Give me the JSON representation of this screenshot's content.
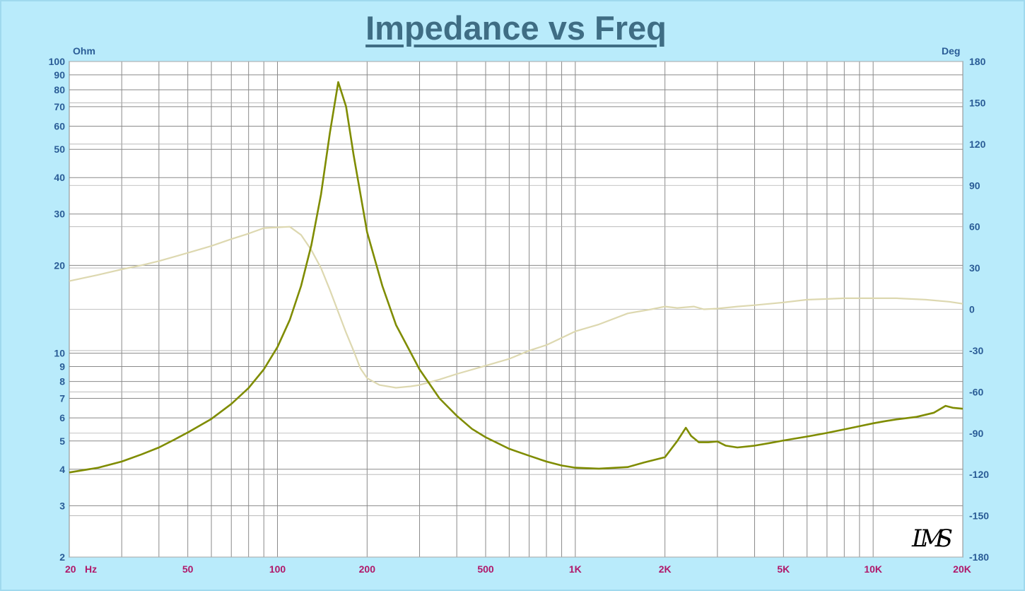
{
  "chart_data": {
    "type": "line",
    "title": "Impedance vs Freq",
    "x_scale": "log",
    "x_range": [
      20,
      20000
    ],
    "x_ticks": [
      {
        "value": 20,
        "label": "20"
      },
      {
        "value": 50,
        "label": "50"
      },
      {
        "value": 100,
        "label": "100"
      },
      {
        "value": 200,
        "label": "200"
      },
      {
        "value": 500,
        "label": "500"
      },
      {
        "value": 1000,
        "label": "1K"
      },
      {
        "value": 2000,
        "label": "2K"
      },
      {
        "value": 5000,
        "label": "5K"
      },
      {
        "value": 10000,
        "label": "10K"
      },
      {
        "value": 20000,
        "label": "20K"
      }
    ],
    "x_unit": "Hz",
    "y_left": {
      "label": "Ohm",
      "scale": "log",
      "range": [
        2,
        100
      ],
      "ticks": [
        2,
        3,
        4,
        5,
        6,
        7,
        8,
        9,
        10,
        20,
        30,
        40,
        50,
        60,
        70,
        80,
        90,
        100
      ]
    },
    "y_right": {
      "label": "Deg",
      "scale": "linear",
      "range": [
        -180,
        180
      ],
      "ticks": [
        -180,
        -150,
        -120,
        -90,
        -60,
        -30,
        0,
        30,
        60,
        90,
        120,
        150,
        180
      ]
    },
    "grid": true,
    "series": [
      {
        "axis": "left",
        "color": "#7f8c00",
        "points": [
          [
            20,
            3.9
          ],
          [
            25,
            4.05
          ],
          [
            30,
            4.25
          ],
          [
            35,
            4.5
          ],
          [
            40,
            4.75
          ],
          [
            45,
            5.05
          ],
          [
            50,
            5.35
          ],
          [
            60,
            5.95
          ],
          [
            70,
            6.7
          ],
          [
            80,
            7.6
          ],
          [
            90,
            8.8
          ],
          [
            100,
            10.5
          ],
          [
            110,
            13.0
          ],
          [
            120,
            17.0
          ],
          [
            130,
            23.5
          ],
          [
            140,
            35.0
          ],
          [
            150,
            57.0
          ],
          [
            160,
            85.0
          ],
          [
            170,
            70.0
          ],
          [
            180,
            48.0
          ],
          [
            200,
            26.0
          ],
          [
            225,
            17.0
          ],
          [
            250,
            12.5
          ],
          [
            300,
            8.8
          ],
          [
            350,
            7.0
          ],
          [
            400,
            6.1
          ],
          [
            450,
            5.5
          ],
          [
            500,
            5.15
          ],
          [
            600,
            4.7
          ],
          [
            700,
            4.45
          ],
          [
            800,
            4.25
          ],
          [
            900,
            4.12
          ],
          [
            1000,
            4.05
          ],
          [
            1200,
            4.02
          ],
          [
            1500,
            4.07
          ],
          [
            1700,
            4.22
          ],
          [
            2000,
            4.4
          ],
          [
            2200,
            5.0
          ],
          [
            2350,
            5.55
          ],
          [
            2450,
            5.2
          ],
          [
            2600,
            4.95
          ],
          [
            2800,
            4.95
          ],
          [
            3000,
            4.98
          ],
          [
            3200,
            4.82
          ],
          [
            3500,
            4.75
          ],
          [
            4000,
            4.82
          ],
          [
            4500,
            4.92
          ],
          [
            5000,
            5.02
          ],
          [
            6000,
            5.18
          ],
          [
            7000,
            5.33
          ],
          [
            8000,
            5.48
          ],
          [
            9000,
            5.62
          ],
          [
            10000,
            5.75
          ],
          [
            11000,
            5.85
          ],
          [
            12000,
            5.93
          ],
          [
            14000,
            6.05
          ],
          [
            16000,
            6.25
          ],
          [
            17500,
            6.6
          ],
          [
            18500,
            6.5
          ],
          [
            20000,
            6.45
          ]
        ]
      },
      {
        "axis": "right",
        "color": "#ddd8b0",
        "points": [
          [
            20,
            20.5
          ],
          [
            25,
            25
          ],
          [
            30,
            29
          ],
          [
            35,
            32
          ],
          [
            40,
            35
          ],
          [
            50,
            41
          ],
          [
            60,
            46
          ],
          [
            70,
            51
          ],
          [
            80,
            55
          ],
          [
            90,
            59
          ],
          [
            100,
            59.5
          ],
          [
            110,
            60
          ],
          [
            120,
            54
          ],
          [
            130,
            43
          ],
          [
            140,
            30
          ],
          [
            150,
            14
          ],
          [
            160,
            -2
          ],
          [
            170,
            -17
          ],
          [
            180,
            -30
          ],
          [
            190,
            -43
          ],
          [
            200,
            -50
          ],
          [
            220,
            -55
          ],
          [
            250,
            -57
          ],
          [
            280,
            -56
          ],
          [
            300,
            -55
          ],
          [
            350,
            -51
          ],
          [
            400,
            -47
          ],
          [
            500,
            -41
          ],
          [
            600,
            -36
          ],
          [
            700,
            -30
          ],
          [
            800,
            -26
          ],
          [
            1000,
            -16
          ],
          [
            1200,
            -11
          ],
          [
            1500,
            -3
          ],
          [
            1800,
            0
          ],
          [
            2000,
            2
          ],
          [
            2200,
            1
          ],
          [
            2500,
            2
          ],
          [
            2700,
            0
          ],
          [
            3000,
            0.5
          ],
          [
            3500,
            2
          ],
          [
            4000,
            3
          ],
          [
            5000,
            5
          ],
          [
            6000,
            7
          ],
          [
            7000,
            7.5
          ],
          [
            8000,
            8
          ],
          [
            10000,
            8
          ],
          [
            12000,
            8
          ],
          [
            15000,
            7
          ],
          [
            18000,
            5.5
          ],
          [
            20000,
            4
          ]
        ]
      }
    ]
  },
  "logo_text": "LMS"
}
